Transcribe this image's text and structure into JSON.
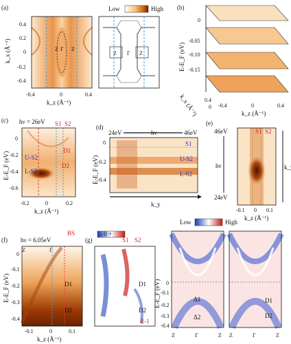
{
  "figure": {
    "panels": [
      {
        "id": "a",
        "label": "(a)"
      },
      {
        "id": "b",
        "label": "(b)"
      },
      {
        "id": "c",
        "label": "(c)"
      },
      {
        "id": "d",
        "label": "(d)"
      },
      {
        "id": "e",
        "label": "(e)"
      },
      {
        "id": "f",
        "label": "(f)"
      },
      {
        "id": "g",
        "label": "(g)"
      },
      {
        "id": "h",
        "label": "(h)"
      },
      {
        "id": "i",
        "label": "(i)"
      }
    ],
    "colorbar_top": {
      "low": "Low",
      "high": "High"
    },
    "colorbar_bottom": {
      "low": "Low",
      "high": "High"
    },
    "panel_a": {
      "ylabel": "k_x (Å⁻¹)",
      "xlabel": "k_z (Å⁻¹)",
      "yticks": [
        "0.4",
        "0.2",
        "0",
        "-0.2",
        "-0.4"
      ],
      "xticks": [
        "-0.4",
        "0",
        "0.4"
      ],
      "points": [
        "Z",
        "Γ",
        "Z"
      ],
      "bz_points": [
        "Z",
        "Γ",
        "Z"
      ]
    },
    "panel_b": {
      "ylabel": "E-E_F (eV)",
      "yticks": [
        "0",
        "-0.05",
        "-0.10",
        "-0.15"
      ],
      "xlabel": "k_z (Å⁻¹)",
      "xticks": [
        "-0.4",
        "0",
        "0.4"
      ],
      "depth_label": "k_x (Å⁻¹)",
      "depth_ticks": [
        "0.4",
        "0",
        "-0.4"
      ]
    },
    "panel_c": {
      "hv": "hν = 26eV",
      "ylabel": "E-E_F (eV)",
      "yticks": [
        "0",
        "-0.2",
        "-0.4",
        "-0.6"
      ],
      "xlabel": "k_z (Å⁻¹)",
      "xticks": [
        "-0.2",
        "0",
        "0.2"
      ],
      "annotations": [
        "S1",
        "S2",
        "D1",
        "D2",
        "U-S2",
        "L-S2"
      ]
    },
    "panel_d": {
      "hv_left": "24eV",
      "hv_right": "46eV",
      "hv": "hν",
      "ylabel": "E-E_F (eV)",
      "yticks": [
        "0",
        "-0.2",
        "-0.4"
      ],
      "xlabel": "k_y",
      "annotations": [
        "S1",
        "U-S2",
        "L-S2"
      ]
    },
    "panel_e": {
      "hv_top": "46eV",
      "hv_bottom": "24eV",
      "hv": "hν",
      "ylabel": "k_y",
      "xlabel": "k_z (Å⁻¹)",
      "xticks": [
        "-0.1",
        "0",
        "0.1"
      ],
      "annotations": [
        "S1",
        "S2"
      ]
    },
    "panel_f": {
      "hv": "hν = 6.05eV",
      "ylabel": "E-E_F (eV)",
      "yticks": [
        "0",
        "-0.1",
        "-0.2",
        "-0.3",
        "-0.4"
      ],
      "xlabel": "k_z (Å⁻¹)",
      "xticks": [
        "-0.1",
        "0",
        "0.1"
      ],
      "points": [
        "Z",
        "Γ"
      ],
      "annotations": [
        "BS",
        "D1",
        "D2"
      ]
    },
    "panel_g": {
      "scale": "-  0  +",
      "annotations": [
        "S1",
        "S2",
        "D1",
        "D2",
        "R-1"
      ]
    },
    "panel_h": {
      "ylabel": "E-E_F (eV)",
      "yticks": [
        "0",
        "-0.1",
        "-0.2",
        "-0.3",
        "-0.4"
      ],
      "xticks": [
        "Z",
        "Γ",
        "Z"
      ],
      "annotations": [
        "Δ1",
        "Δ2"
      ]
    },
    "panel_i": {
      "xticks": [
        "Z",
        "Γ",
        "Z"
      ],
      "annotations": [
        "D1",
        "D2"
      ]
    }
  }
}
